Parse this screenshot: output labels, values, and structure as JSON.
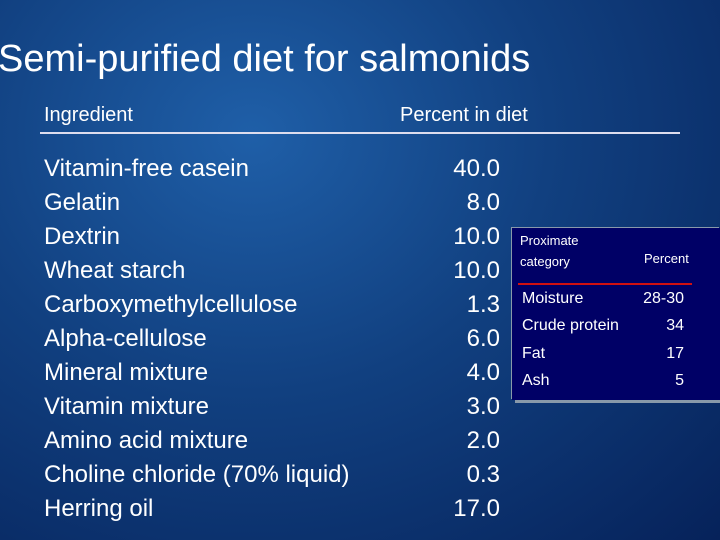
{
  "title": "Semi-purified diet for salmonids",
  "table": {
    "header": [
      "Ingredient",
      "Percent in diet"
    ],
    "rows": [
      [
        "Vitamin-free casein",
        "40.0"
      ],
      [
        "Gelatin",
        "8.0"
      ],
      [
        "Dextrin",
        "10.0"
      ],
      [
        "Wheat starch",
        "10.0"
      ],
      [
        "Carboxymethylcellulose",
        "1.3"
      ],
      [
        "Alpha-cellulose",
        "6.0"
      ],
      [
        "Mineral mixture",
        "4.0"
      ],
      [
        "Vitamin mixture",
        "3.0"
      ],
      [
        "Amino acid mixture",
        "2.0"
      ],
      [
        "Choline chloride (70% liquid)",
        "0.3"
      ],
      [
        "Herring oil",
        "17.0"
      ]
    ]
  },
  "proximate": {
    "header": [
      "Proximate category",
      "Percent"
    ],
    "rows": [
      [
        "Moisture",
        "28-30"
      ],
      [
        "Crude protein",
        "34"
      ],
      [
        "Fat",
        "17"
      ],
      [
        "Ash",
        "5"
      ]
    ]
  }
}
